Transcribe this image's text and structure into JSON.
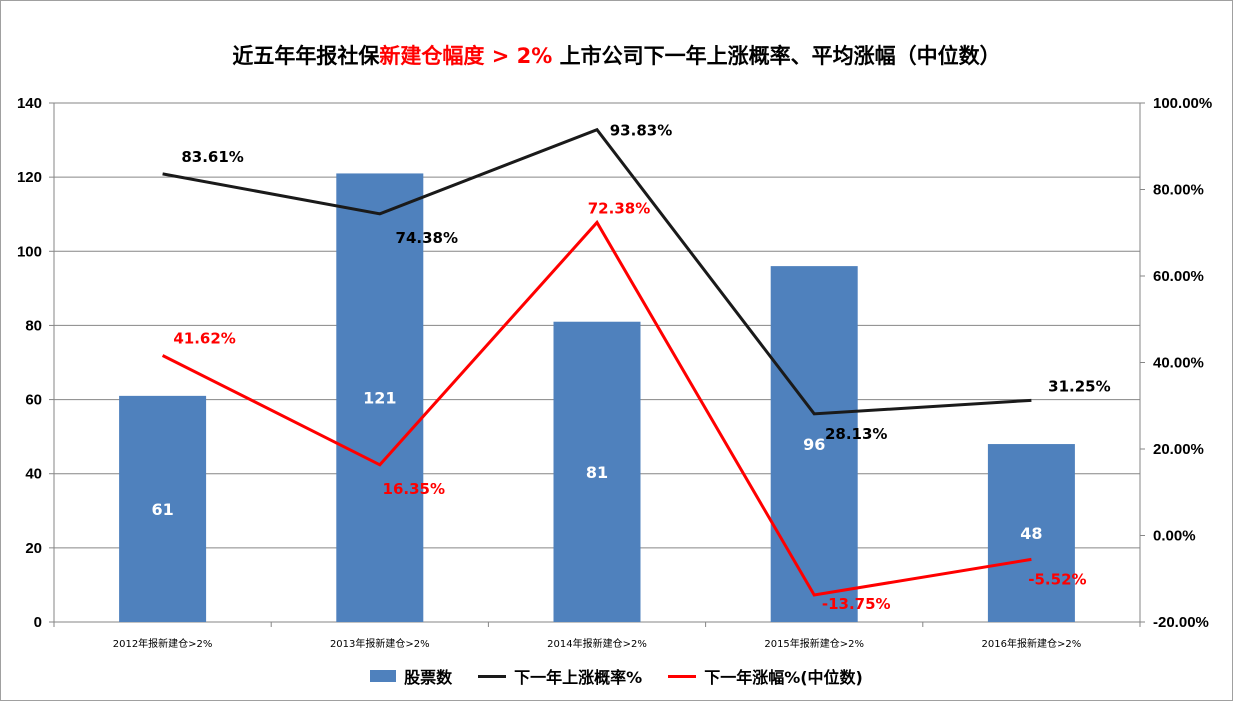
{
  "title": {
    "part1": "近五年年报社保",
    "part2": "新建仓幅度 > 2%",
    "part3": " 上市公司下一年上涨概率、平均涨幅（中位数）"
  },
  "colors": {
    "bar": "#4f81bd",
    "prob_line": "#1a1a1a",
    "gain_line": "#ff0000",
    "grid": "#868686"
  },
  "legend": {
    "bar": "股票数",
    "prob": "下一年上涨概率%",
    "gain": "下一年涨幅%(中位数)"
  },
  "chart_data": {
    "type": "bar",
    "categories": [
      "2012年报新建仓>2%",
      "2013年报新建仓>2%",
      "2014年报新建仓>2%",
      "2015年报新建仓>2%",
      "2016年报新建仓>2%"
    ],
    "series": [
      {
        "name": "股票数",
        "type": "bar",
        "axis": "left",
        "values": [
          61,
          121,
          81,
          96,
          48
        ],
        "labels": [
          "61",
          "121",
          "81",
          "96",
          "48"
        ]
      },
      {
        "name": "下一年上涨概率%",
        "type": "line",
        "axis": "right",
        "values": [
          83.61,
          74.38,
          93.83,
          28.13,
          31.25
        ],
        "labels": [
          "83.61%",
          "74.38%",
          "93.83%",
          "28.13%",
          "31.25%"
        ]
      },
      {
        "name": "下一年涨幅%(中位数)",
        "type": "line",
        "axis": "right",
        "values": [
          41.62,
          16.35,
          72.38,
          -13.75,
          -5.52
        ],
        "labels": [
          "41.62%",
          "16.35%",
          "72.38%",
          "-13.75%",
          "-5.52%"
        ]
      }
    ],
    "y_left": {
      "min": 0,
      "max": 140,
      "ticks": [
        "0",
        "20",
        "40",
        "60",
        "80",
        "100",
        "120",
        "140"
      ]
    },
    "y_right": {
      "min": -20,
      "max": 100,
      "ticks": [
        "-20.00%",
        "0.00%",
        "20.00%",
        "40.00%",
        "60.00%",
        "80.00%",
        "100.00%"
      ]
    },
    "grid": true,
    "legend_position": "bottom"
  }
}
